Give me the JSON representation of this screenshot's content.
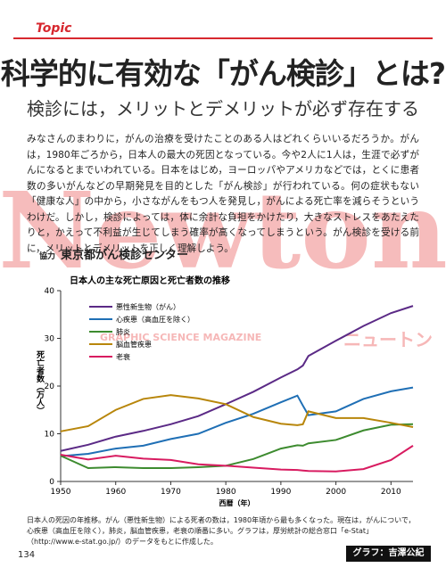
{
  "header": {
    "label": "Topic",
    "title": "科学的に有効な「がん検診」とは?",
    "subtitle": "検診には，メリットとデメリットが必ず存在する"
  },
  "body": "みなさんのまわりに，がんの治療を受けたことのある人はどれくらいいるだろうか。がんは，1980年ごろから，日本人の最大の死因となっている。今や2人に1人は，生涯で必ずがんになるとまでいわれている。日本をはじめ，ヨーロッパやアメリカなどでは，とくに患者数の多いがんなどの早期発見を目的とした「がん検診」が行われている。何の症状もない「健康な人」の中から，小さながんをもつ人を発見し，がんによる死亡率を減らそうというわけだ。しかし，検診によっては，体に余計な負担をかけたり，大きなストレスをあたえたりと，かえって不利益が生じてしまう確率が高くなってしまうという。がん検診を受ける前に，メリットとデメリットを正しく理解しよう。",
  "watermark": {
    "logo": "Newton",
    "tagline": "GRAPHIC SCIENCE MAGAZINE",
    "kana": "ニュートン"
  },
  "cooperation": {
    "label": "協力",
    "name": "東京都がん検診センター"
  },
  "chart_data": {
    "type": "line",
    "title": "日本人の主な死亡原因と死亡者数の推移",
    "x_label": "西暦（年）",
    "y_label": "死亡者数（万人）",
    "x": [
      1950,
      1955,
      1960,
      1965,
      1970,
      1975,
      1980,
      1985,
      1990,
      1993,
      1994,
      1995,
      2000,
      2005,
      2010,
      2014
    ],
    "series": [
      {
        "name": "悪性新生物（がん）",
        "color": "#5b2a86",
        "values": [
          6.4,
          7.7,
          9.4,
          10.6,
          12.0,
          13.7,
          16.2,
          18.8,
          21.8,
          23.5,
          24.3,
          26.3,
          29.5,
          32.6,
          35.3,
          36.8
        ]
      },
      {
        "name": "心疾患（高血圧を除く）",
        "color": "#1f6fb5",
        "values": [
          5.3,
          5.8,
          6.9,
          7.5,
          8.9,
          10.0,
          12.3,
          14.2,
          16.6,
          18.0,
          15.9,
          13.9,
          14.7,
          17.3,
          18.9,
          19.7
        ]
      },
      {
        "name": "肺炎",
        "color": "#3d8b2f",
        "values": [
          5.4,
          2.8,
          3.0,
          2.8,
          2.8,
          3.0,
          3.3,
          4.7,
          6.9,
          7.6,
          7.5,
          8.0,
          8.7,
          10.7,
          11.9,
          12.0
        ]
      },
      {
        "name": "脳血管疾患",
        "color": "#b8860b",
        "values": [
          10.5,
          11.6,
          15.0,
          17.3,
          18.1,
          17.4,
          16.2,
          13.5,
          12.1,
          11.8,
          12.0,
          14.7,
          13.3,
          13.3,
          12.3,
          11.4
        ]
      },
      {
        "name": "老衰",
        "color": "#d81b60",
        "values": [
          5.6,
          4.6,
          5.4,
          4.8,
          4.5,
          3.6,
          3.3,
          2.9,
          2.5,
          2.4,
          2.3,
          2.2,
          2.1,
          2.6,
          4.5,
          7.5
        ]
      }
    ],
    "xlim": [
      1950,
      2014
    ],
    "xticks": [
      1950,
      1960,
      1970,
      1980,
      1990,
      2000,
      2010
    ],
    "ylim": [
      0,
      40
    ],
    "yticks": [
      0,
      10,
      20,
      30,
      40
    ],
    "grid": false
  },
  "caption": "日本人の死因の年推移。がん（悪性新生物）による死者の数は，1980年頃から最も多くなった。現在は，がんについで，心疾患（高血圧を除く），肺炎，脳血管疾患，老衰の順番に多い。グラフは，厚労統計の総合窓口「e-Stat」（http://www.e-stat.go.jp/）のデータをもとに作成した。",
  "page_number": "134",
  "credit": "グラフ：吉澤公紀"
}
